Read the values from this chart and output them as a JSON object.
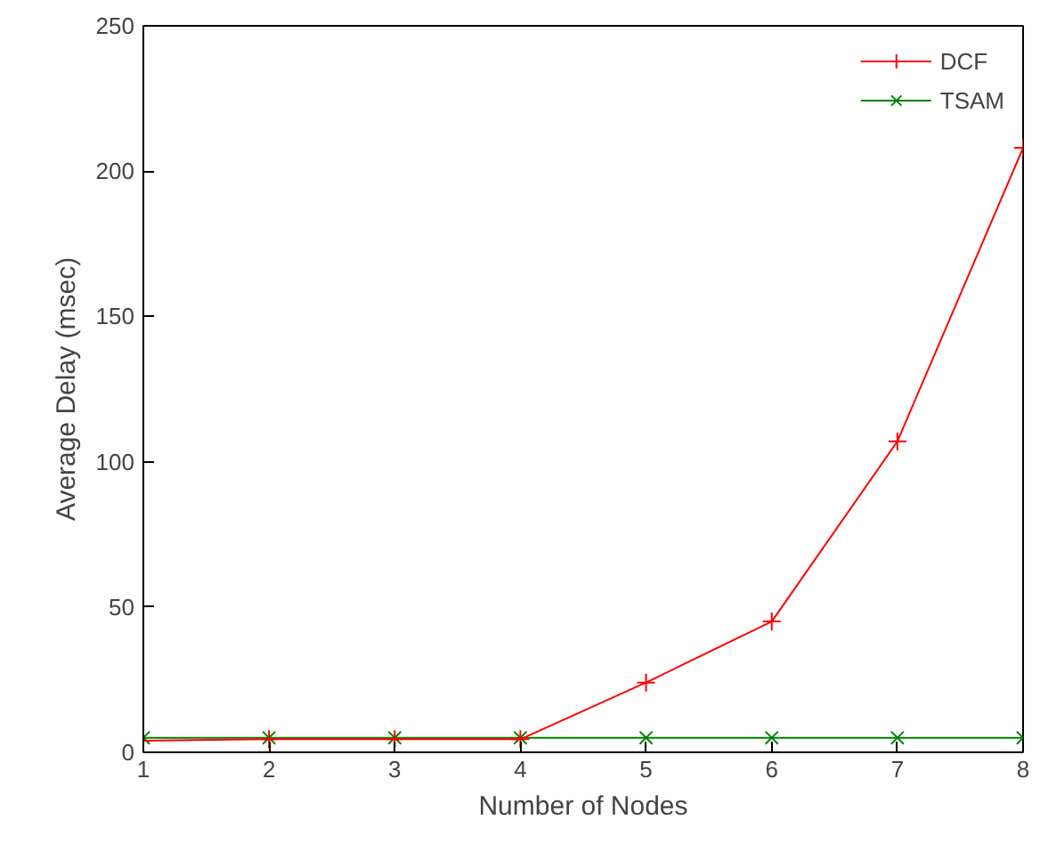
{
  "chart_data": {
    "type": "line",
    "xlabel": "Number of Nodes",
    "ylabel": "Average Delay (msec)",
    "x": [
      1,
      2,
      3,
      4,
      5,
      6,
      7,
      8
    ],
    "series": [
      {
        "name": "DCF",
        "color": "#ff0000",
        "marker": "cross",
        "values": [
          4,
          4.5,
          4.5,
          4.5,
          24,
          45,
          107,
          208
        ]
      },
      {
        "name": "TSAM",
        "color": "#008000",
        "marker": "x",
        "values": [
          5,
          5,
          5,
          5,
          5,
          5,
          5,
          5
        ]
      }
    ],
    "xlim": [
      1,
      8
    ],
    "xticks": [
      1,
      2,
      3,
      4,
      5,
      6,
      7,
      8
    ],
    "ylim": [
      0,
      250
    ],
    "yticks": [
      0,
      50,
      100,
      150,
      200,
      250
    ],
    "grid": false,
    "legend": "top right",
    "line_style": "solid"
  }
}
